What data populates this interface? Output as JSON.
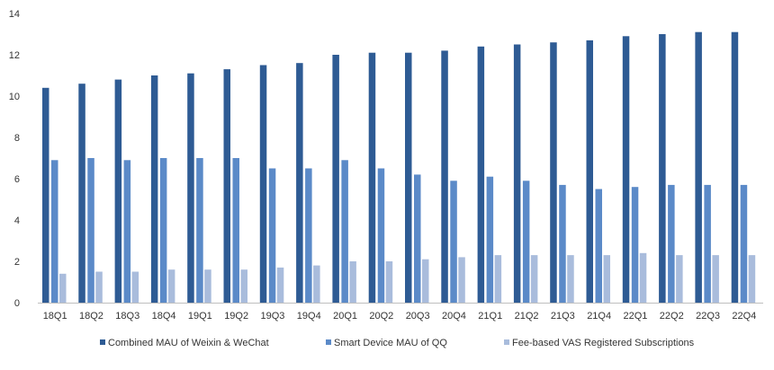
{
  "chart_data": {
    "type": "bar",
    "title": "",
    "xlabel": "",
    "ylabel": "",
    "ylim": [
      0,
      14
    ],
    "yticks": [
      0,
      2,
      4,
      6,
      8,
      10,
      12,
      14
    ],
    "grid": false,
    "legend_position": "bottom",
    "categories": [
      "18Q1",
      "18Q2",
      "18Q3",
      "18Q4",
      "19Q1",
      "19Q2",
      "19Q3",
      "19Q4",
      "20Q1",
      "20Q2",
      "20Q3",
      "20Q4",
      "21Q1",
      "21Q2",
      "21Q3",
      "21Q4",
      "22Q1",
      "22Q2",
      "22Q3",
      "22Q4"
    ],
    "series": [
      {
        "name": "Combined MAU of Weixin & WeChat",
        "color": "#2e5b94",
        "values": [
          10.4,
          10.6,
          10.8,
          11.0,
          11.1,
          11.3,
          11.5,
          11.6,
          12.0,
          12.1,
          12.1,
          12.2,
          12.4,
          12.5,
          12.6,
          12.7,
          12.9,
          13.0,
          13.1,
          13.1
        ]
      },
      {
        "name": "Smart Device MAU of QQ",
        "color": "#5b8ac8",
        "values": [
          6.9,
          7.0,
          6.9,
          7.0,
          7.0,
          7.0,
          6.5,
          6.5,
          6.9,
          6.5,
          6.2,
          5.9,
          6.1,
          5.9,
          5.7,
          5.5,
          5.6,
          5.7,
          5.7,
          5.7
        ]
      },
      {
        "name": "Fee-based VAS Registered Subscriptions",
        "color": "#a9bcdc",
        "values": [
          1.4,
          1.5,
          1.5,
          1.6,
          1.6,
          1.6,
          1.7,
          1.8,
          2.0,
          2.0,
          2.1,
          2.2,
          2.3,
          2.3,
          2.3,
          2.3,
          2.4,
          2.3,
          2.3,
          2.3
        ]
      }
    ]
  }
}
